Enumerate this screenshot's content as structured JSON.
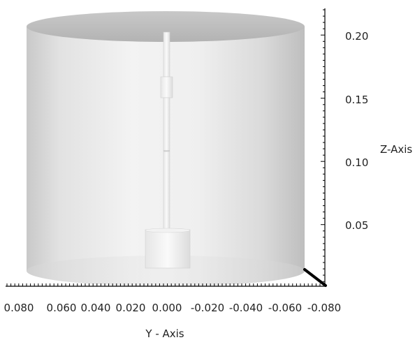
{
  "axes": {
    "y_title": "Y - Axis",
    "z_title": "Z-Axis",
    "y_ticks": [
      "0.080",
      "0.060",
      "0.040",
      "0.020",
      "0.000",
      "-0.020",
      "-0.040",
      "-0.060",
      "-0.080"
    ],
    "z_ticks": [
      "0.20",
      "0.15",
      "0.10",
      "0.05"
    ]
  },
  "colors": {
    "background": "#ffffff",
    "vessel_wall_light": "#f2f2f2",
    "vessel_wall_dark": "#c4c4c4",
    "vessel_top_rim": "#bdbdbd",
    "impeller": "#f7f7f7",
    "axis": "#000000"
  }
}
